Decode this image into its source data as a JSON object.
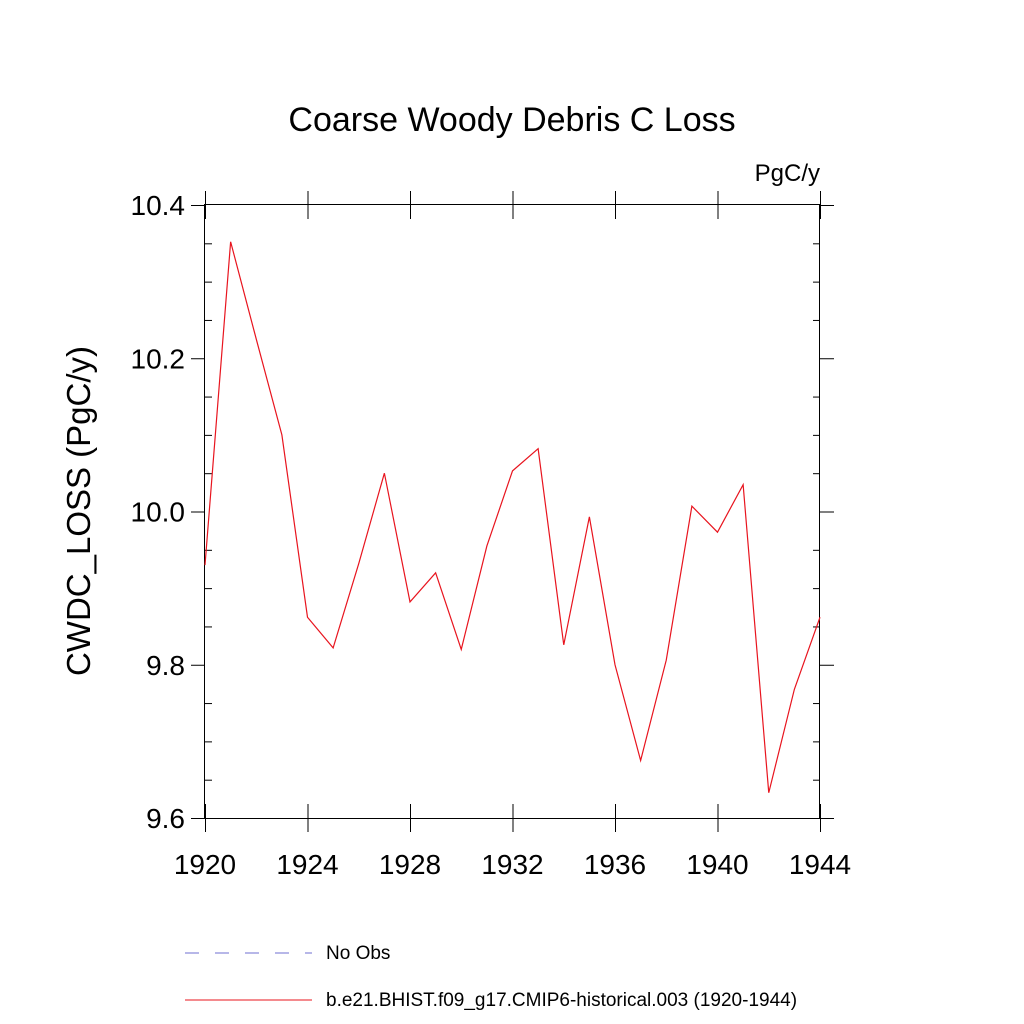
{
  "chart_data": {
    "type": "line",
    "title": "Coarse Woody Debris C Loss",
    "units_label": "PgC/y",
    "xlabel": "",
    "ylabel": "CWDC_LOSS  (PgC/y)",
    "xlim": [
      1920,
      1944
    ],
    "ylim": [
      9.6,
      10.4
    ],
    "x_ticks": [
      1920,
      1924,
      1928,
      1932,
      1936,
      1940,
      1944
    ],
    "x_tick_labels": [
      "1920",
      "1924",
      "1928",
      "1932",
      "1936",
      "1940",
      "1944"
    ],
    "y_ticks": [
      9.6,
      9.8,
      10.0,
      10.2,
      10.4
    ],
    "y_tick_labels": [
      "9.6",
      "9.8",
      "10.0",
      "10.2",
      "10.4"
    ],
    "x_minor_step": 1,
    "y_minor_step": 0.05,
    "grid": false,
    "series": [
      {
        "name": "b.e21.BHIST.f09_g17.CMIP6-historical.003 (1920-1944)",
        "color": "#e8141e",
        "style": "solid",
        "x": [
          1920,
          1921,
          1922,
          1923,
          1924,
          1925,
          1926,
          1927,
          1928,
          1929,
          1930,
          1931,
          1932,
          1933,
          1934,
          1935,
          1936,
          1937,
          1938,
          1939,
          1940,
          1941,
          1942,
          1943,
          1944
        ],
        "values": [
          9.93,
          10.352,
          10.225,
          10.1,
          9.862,
          9.822,
          9.932,
          10.05,
          9.882,
          9.92,
          9.82,
          9.955,
          10.053,
          10.082,
          9.826,
          9.993,
          9.8,
          9.675,
          9.806,
          10.007,
          9.973,
          10.035,
          9.633,
          9.768,
          9.862
        ]
      }
    ],
    "legend": {
      "position": "bottom",
      "entries": [
        {
          "label": "No Obs",
          "color": "#6f6fd0",
          "style": "dashed"
        },
        {
          "label": "b.e21.BHIST.f09_g17.CMIP6-historical.003 (1920-1944)",
          "color": "#e8141e",
          "style": "solid"
        }
      ]
    }
  }
}
